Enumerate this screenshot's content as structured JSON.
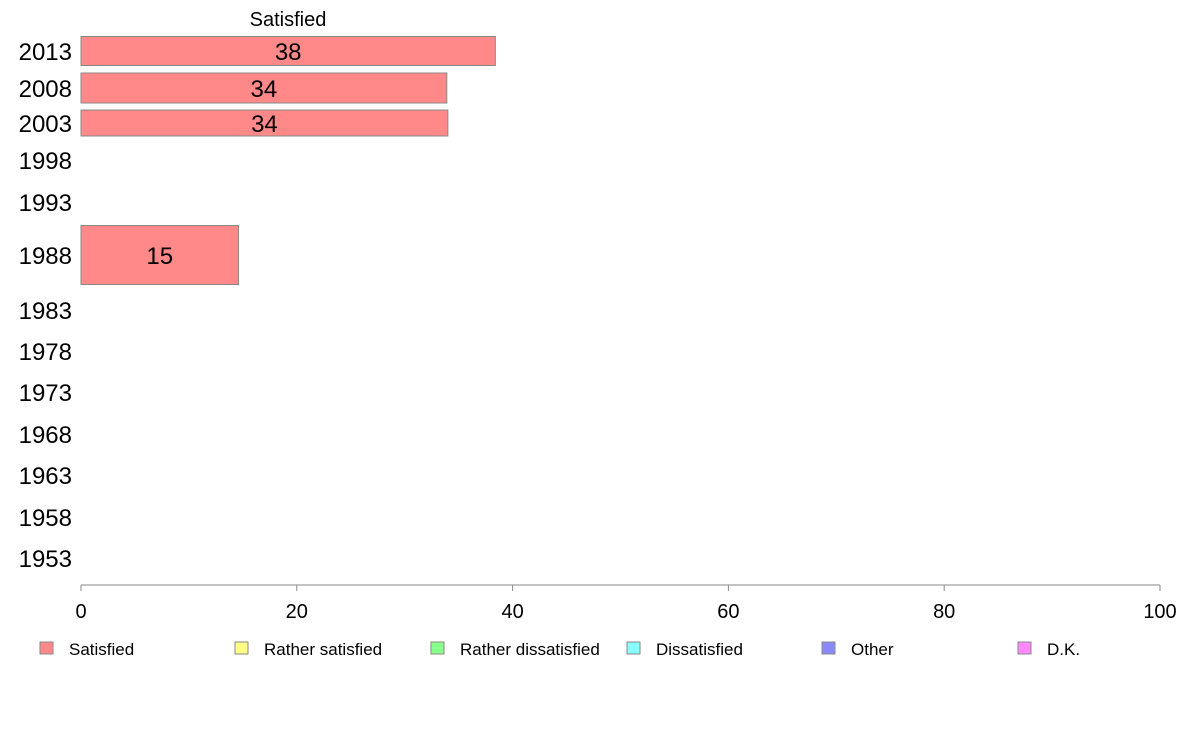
{
  "chart_data": {
    "type": "bar",
    "orientation": "horizontal",
    "stacked": true,
    "column_header": "Satisfied",
    "categories": [
      "2013",
      "2008",
      "2003",
      "1998",
      "1993",
      "1988",
      "1983",
      "1978",
      "1973",
      "1968",
      "1963",
      "1958",
      "1953"
    ],
    "series": [
      {
        "name": "Satisfied",
        "color": "#ff8888",
        "values": [
          38.4,
          33.9,
          34,
          null,
          null,
          14.6,
          null,
          null,
          null,
          null,
          null,
          null,
          null
        ],
        "labels": [
          "38",
          "34",
          "34",
          "",
          "",
          "15",
          "",
          "",
          "",
          "",
          "",
          "",
          ""
        ]
      },
      {
        "name": "Rather satisfied",
        "color": "#ffff88",
        "values": [
          null,
          null,
          null,
          null,
          null,
          null,
          null,
          null,
          null,
          null,
          null,
          null,
          null
        ]
      },
      {
        "name": "Rather dissatisfied",
        "color": "#88ff88",
        "values": [
          null,
          null,
          null,
          null,
          null,
          null,
          null,
          null,
          null,
          null,
          null,
          null,
          null
        ]
      },
      {
        "name": "Dissatisfied",
        "color": "#88ffff",
        "values": [
          null,
          null,
          null,
          null,
          null,
          null,
          null,
          null,
          null,
          null,
          null,
          null,
          null
        ]
      },
      {
        "name": "Other",
        "color": "#8888ff",
        "values": [
          null,
          null,
          null,
          null,
          null,
          null,
          null,
          null,
          null,
          null,
          null,
          null,
          null
        ]
      },
      {
        "name": "D.K.",
        "color": "#ff88ff",
        "values": [
          null,
          null,
          null,
          null,
          null,
          null,
          null,
          null,
          null,
          null,
          null,
          null,
          null
        ]
      }
    ],
    "xlim": [
      0,
      100
    ],
    "xticks": [
      "0",
      "20",
      "40",
      "60",
      "80",
      "100"
    ],
    "legend_position": "bottom",
    "grid": false
  }
}
